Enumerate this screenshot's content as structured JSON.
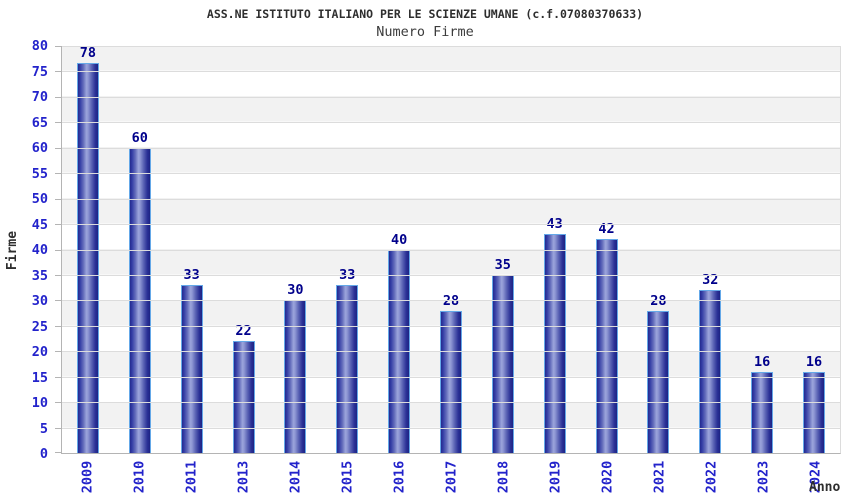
{
  "chart_data": {
    "type": "bar",
    "title": "ASS.NE ISTITUTO ITALIANO PER LE SCIENZE UMANE (c.f.07080370633)",
    "subtitle": "Numero Firme",
    "xlabel": "Anno",
    "ylabel": "Firme",
    "categories": [
      "2009",
      "2010",
      "2011",
      "2013",
      "2014",
      "2015",
      "2016",
      "2017",
      "2018",
      "2019",
      "2020",
      "2021",
      "2022",
      "2023",
      "2024"
    ],
    "values": [
      78,
      60,
      33,
      22,
      30,
      33,
      40,
      28,
      35,
      43,
      42,
      28,
      32,
      16,
      16
    ],
    "ylim": [
      0,
      80
    ],
    "yticks": [
      0,
      5,
      10,
      15,
      20,
      25,
      30,
      35,
      40,
      45,
      50,
      55,
      60,
      65,
      70,
      75,
      80
    ],
    "grid": "horizontal-lines-with-alternating-bands",
    "legend": "none"
  },
  "colors": {
    "axis_tick_label": "#2323cb",
    "value_label": "#00008b",
    "bar_border": "#64a8e8",
    "bar_dark": "#242a8e",
    "bar_light": "#9ba4db",
    "band_gray": "#f2f2f2",
    "gridline": "#dcdcdc",
    "axis_line": "#b4b4b4",
    "title_color": "#2e2e2e",
    "subtitle_color": "#3c3c3c"
  }
}
